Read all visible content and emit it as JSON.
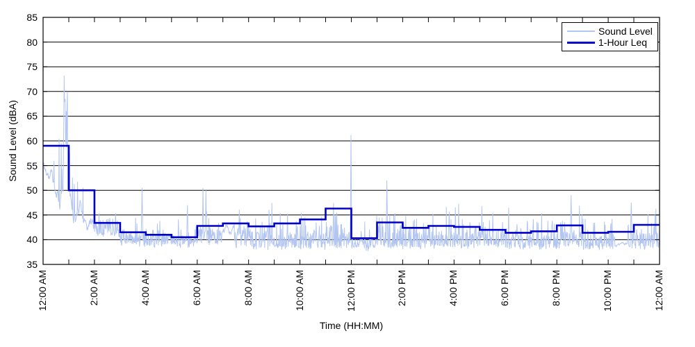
{
  "chart_data": {
    "type": "line",
    "title": "",
    "xlabel": "Time (HH:MM)",
    "ylabel": "Sound Level (dBA)",
    "ylim": [
      35,
      85
    ],
    "ytick_step": 5,
    "x_span_hours": 24,
    "xtick_every_hours": 1,
    "xlabel_every_hours": 2,
    "xtick_labels": [
      "12:00 AM",
      "2:00 AM",
      "4:00 AM",
      "6:00 AM",
      "8:00 AM",
      "10:00 AM",
      "12:00 PM",
      "2:00 PM",
      "4:00 PM",
      "6:00 PM",
      "8:00 PM",
      "10:00 PM",
      "12:00 AM"
    ],
    "grid": "horizontal-solid-black",
    "legend": {
      "position": "top-right-inside",
      "entries": [
        "Sound Level",
        "1-Hour Leq"
      ]
    },
    "series": [
      {
        "name": "Sound Level",
        "kind": "noisy-measured-trace",
        "color": "#b3c6f2",
        "line_width": 1,
        "seed": 11,
        "samples": 1700,
        "segments_comment": "[t_start_h, t_end_h, mode(0=wander,1=floor+spikes), base_start_dBA, base_end_dBA, noise_amp_dBA, spike_prob, spike_max_dBA]",
        "segments": [
          [
            0.0,
            0.55,
            0,
            53.0,
            50.5,
            2.0,
            0.05,
            57.0
          ],
          [
            0.55,
            0.8,
            0,
            51.0,
            51.0,
            2.6,
            0.2,
            63.0
          ],
          [
            0.8,
            0.97,
            0,
            53.0,
            52.0,
            3.2,
            0.32,
            70.0
          ],
          [
            0.97,
            1.3,
            0,
            51.0,
            47.0,
            2.8,
            0.16,
            64.0
          ],
          [
            1.3,
            2.0,
            0,
            47.0,
            43.5,
            1.8,
            0.07,
            54.0
          ],
          [
            2.0,
            3.0,
            1,
            42.8,
            41.8,
            1.5,
            0.1,
            47.5
          ],
          [
            3.0,
            5.0,
            1,
            40.4,
            40.2,
            1.2,
            0.09,
            46.5
          ],
          [
            5.0,
            5.9,
            1,
            39.9,
            39.9,
            1.0,
            0.07,
            45.0
          ],
          [
            5.9,
            6.95,
            1,
            40.8,
            40.8,
            1.5,
            0.12,
            46.5
          ],
          [
            6.95,
            7.45,
            0,
            41.5,
            42.3,
            0.9,
            0.06,
            46.0
          ],
          [
            7.45,
            11.95,
            1,
            39.9,
            39.9,
            1.6,
            0.24,
            48.5
          ],
          [
            11.95,
            12.1,
            1,
            39.6,
            39.6,
            1.2,
            0.1,
            45.0
          ],
          [
            12.1,
            12.65,
            1,
            39.3,
            39.3,
            1.0,
            0.09,
            44.5
          ],
          [
            12.65,
            13.0,
            1,
            39.7,
            39.7,
            1.2,
            0.16,
            46.0
          ],
          [
            13.0,
            14.0,
            1,
            40.2,
            40.2,
            1.5,
            0.2,
            49.0
          ],
          [
            14.0,
            18.0,
            1,
            39.9,
            39.9,
            1.4,
            0.19,
            47.5
          ],
          [
            18.0,
            20.0,
            1,
            39.7,
            39.7,
            1.3,
            0.17,
            47.0
          ],
          [
            20.0,
            21.0,
            1,
            40.1,
            40.1,
            1.5,
            0.21,
            48.5
          ],
          [
            21.0,
            22.25,
            1,
            39.6,
            39.6,
            1.2,
            0.15,
            46.5
          ],
          [
            22.25,
            22.75,
            0,
            38.8,
            38.8,
            0.4,
            0.02,
            41.0
          ],
          [
            22.75,
            24.0,
            1,
            40.0,
            40.0,
            1.5,
            0.2,
            48.0
          ]
        ],
        "notable_spikes_comment": "[time_hours, dBA] visible individual peaks",
        "notable_spikes": [
          [
            0.82,
            73.2
          ],
          [
            0.86,
            68.5
          ],
          [
            0.9,
            66.0
          ],
          [
            3.85,
            50.5
          ],
          [
            5.62,
            47.0
          ],
          [
            6.22,
            50.5
          ],
          [
            6.34,
            50.0
          ],
          [
            11.98,
            61.2
          ],
          [
            13.38,
            52.0
          ],
          [
            20.55,
            49.0
          ],
          [
            22.9,
            47.5
          ]
        ]
      },
      {
        "name": "1-Hour Leq",
        "kind": "hourly-step",
        "color": "#0000cc",
        "line_width": 2.6,
        "hourly_leq_dba": [
          59.0,
          50.0,
          43.4,
          41.5,
          41.0,
          40.5,
          42.8,
          43.3,
          42.7,
          43.3,
          44.1,
          46.3,
          40.3,
          43.5,
          42.4,
          42.8,
          42.6,
          42.0,
          41.4,
          41.7,
          42.9,
          41.4,
          41.6,
          43.0
        ]
      }
    ]
  }
}
